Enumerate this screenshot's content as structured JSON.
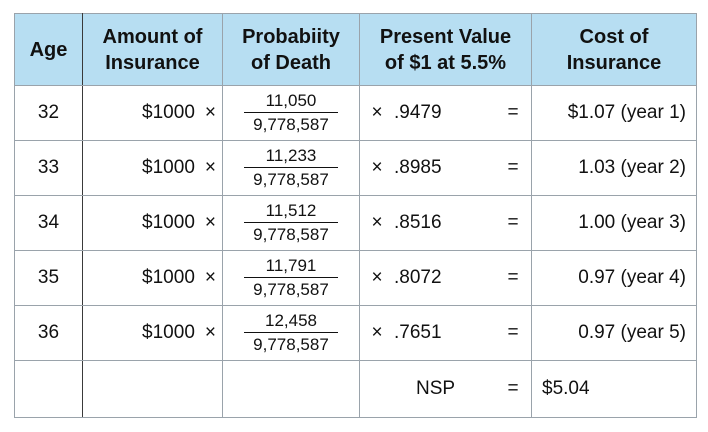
{
  "headers": {
    "age": "Age",
    "amount_line1": "Amount of",
    "amount_line2": "Insurance",
    "prob_line1": "Probabiity",
    "prob_line2": "of Death",
    "pv_line1": "Present Value",
    "pv_line2": "of $1 at 5.5%",
    "cost_line1": "Cost of",
    "cost_line2": "Insurance"
  },
  "rows": [
    {
      "age": "32",
      "amount": "$1000",
      "times": "×",
      "numerator": "11,050",
      "denominator": "9,778,587",
      "pv": ".9479",
      "equals": "=",
      "cost": "$1.07 (year 1)"
    },
    {
      "age": "33",
      "amount": "$1000",
      "times": "×",
      "numerator": "11,233",
      "denominator": "9,778,587",
      "pv": ".8985",
      "equals": "=",
      "cost": "1.03 (year 2)"
    },
    {
      "age": "34",
      "amount": "$1000",
      "times": "×",
      "numerator": "11,512",
      "denominator": "9,778,587",
      "pv": ".8516",
      "equals": "=",
      "cost": "1.00 (year 3)"
    },
    {
      "age": "35",
      "amount": "$1000",
      "times": "×",
      "numerator": "11,791",
      "denominator": "9,778,587",
      "pv": ".8072",
      "equals": "=",
      "cost": "0.97 (year 4)"
    },
    {
      "age": "36",
      "amount": "$1000",
      "times": "×",
      "numerator": "12,458",
      "denominator": "9,778,587",
      "pv": ".7651",
      "equals": "=",
      "cost": "0.97 (year 5)"
    }
  ],
  "total": {
    "label": "NSP",
    "equals": "=",
    "value": "$5.04"
  },
  "colors": {
    "header_background": "#b7def2",
    "border": "#9aa3ab"
  }
}
